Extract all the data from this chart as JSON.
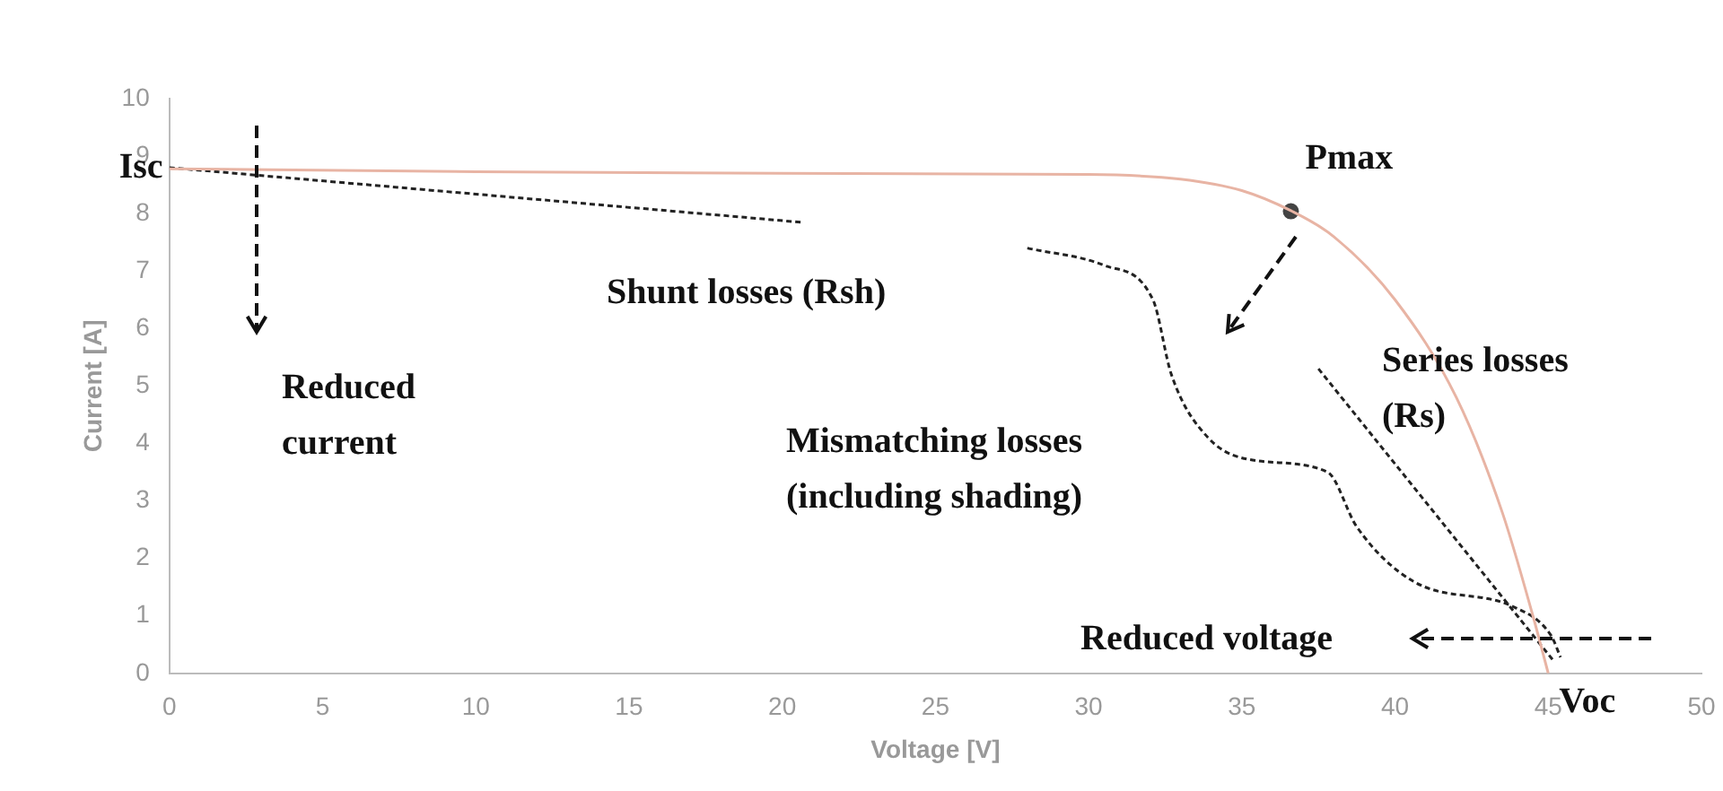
{
  "chart_data": {
    "type": "line",
    "xlabel": "Voltage [V]",
    "ylabel": "Current [A]",
    "xlim": [
      0,
      50
    ],
    "ylim": [
      0,
      10
    ],
    "xticks": [
      0,
      5,
      10,
      15,
      20,
      25,
      30,
      35,
      40,
      45,
      50
    ],
    "yticks": [
      0,
      1,
      2,
      3,
      4,
      5,
      6,
      7,
      8,
      9,
      10
    ],
    "grid": false,
    "legend": false,
    "marker": "none",
    "series": [
      {
        "color": "#e8b4a4",
        "line_style": "solid",
        "x": [
          0,
          10,
          20,
          30,
          33,
          35,
          36.6,
          38,
          40,
          42,
          43.5,
          44.5,
          45
        ],
        "values": [
          8.78,
          8.73,
          8.7,
          8.68,
          8.6,
          8.4,
          8.05,
          7.6,
          6.5,
          4.8,
          2.8,
          1.0,
          0
        ]
      },
      {
        "color": "#222222",
        "line_style": "dotted",
        "x": [
          0,
          20.6
        ],
        "values": [
          8.8,
          7.85
        ]
      },
      {
        "color": "#222222",
        "line_style": "dotted",
        "x": [
          28,
          30.5,
          32.1,
          32.7,
          33.9,
          35.5,
          37.8,
          38.75,
          40.6,
          43.9,
          45.1,
          45.4
        ],
        "values": [
          7.4,
          7.1,
          6.5,
          5.2,
          4.1,
          3.7,
          3.5,
          2.55,
          1.6,
          1.15,
          0.65,
          0.28
        ]
      },
      {
        "color": "#222222",
        "line_style": "dotted",
        "x": [
          37.5,
          45.2
        ],
        "values": [
          5.3,
          0.2
        ]
      },
      {
        "type": "scatter",
        "marker": "circle",
        "color": "#444444",
        "x": [
          36.6
        ],
        "values": [
          8.04
        ]
      }
    ],
    "annotations": [
      {
        "text": "Isc",
        "x": 0,
        "y": 8.8
      },
      {
        "text": "Pmax",
        "x": 36.6,
        "y": 8.04
      },
      {
        "text": "Voc",
        "x": 45,
        "y": 0
      },
      "Shunt losses (Rsh)",
      "Reduced current",
      "Mismatching losses (including shading)",
      "Series losses (Rs)",
      "Reduced voltage"
    ]
  }
}
